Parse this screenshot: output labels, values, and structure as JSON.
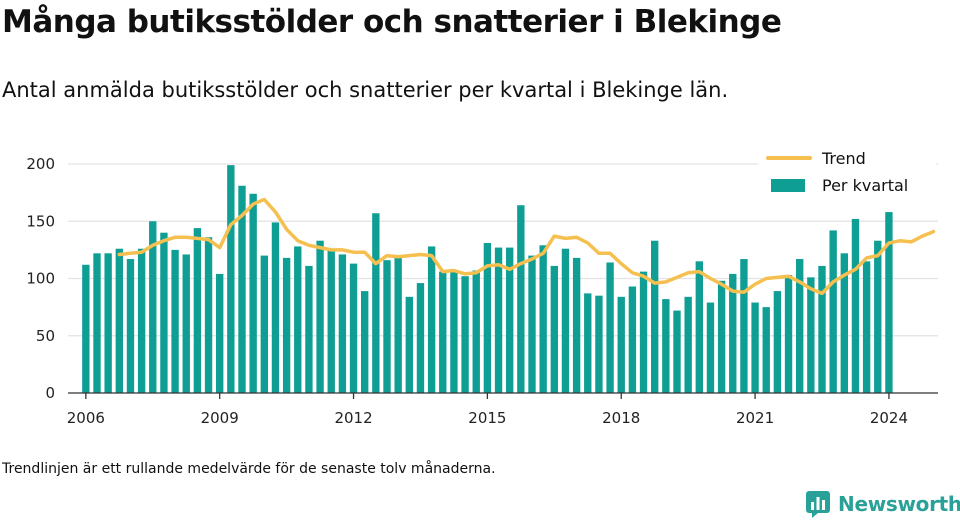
{
  "title": "Många butiksstölder och snatterier i Blekinge",
  "subtitle": "Antal anmälda butiksstölder och snatterier per kvartal i Blekinge län.",
  "footnote": "Trendlinjen är ett rullande medelvärde för de senaste tolv månaderna.",
  "brand": "Newsworthy",
  "colors": {
    "bar": "#0f9e94",
    "trend": "#f5c04f",
    "grid": "#e3e3e3",
    "axis": "#333333",
    "brand": "#2aa198"
  },
  "chart_data": {
    "type": "bar",
    "title": "",
    "xlabel": "",
    "ylabel": "",
    "ylim": [
      0,
      200
    ],
    "yticks": [
      0,
      50,
      100,
      150,
      200
    ],
    "xticks": [
      "2006",
      "2009",
      "2012",
      "2015",
      "2018",
      "2021",
      "2024"
    ],
    "xlim": [
      2005.6,
      2025.1
    ],
    "grid": true,
    "legend_position": "top-right",
    "series": [
      {
        "name": "Per kvartal",
        "type": "bar",
        "start_year": 2006,
        "start_quarter": 1,
        "values": [
          112,
          122,
          122,
          126,
          117,
          126,
          150,
          140,
          125,
          121,
          144,
          136,
          104,
          199,
          181,
          174,
          120,
          149,
          118,
          128,
          111,
          133,
          124,
          121,
          113,
          89,
          157,
          116,
          118,
          84,
          96,
          128,
          106,
          106,
          102,
          107,
          131,
          127,
          127,
          164,
          120,
          129,
          111,
          126,
          118,
          87,
          85,
          114,
          84,
          93,
          106,
          133,
          82,
          72,
          84,
          115,
          79,
          98,
          104,
          117,
          79,
          75,
          89,
          103,
          117,
          101,
          111,
          142,
          122,
          152,
          115,
          133,
          158
        ]
      },
      {
        "name": "Trend",
        "type": "line",
        "points": [
          [
            2006.75,
            121
          ],
          [
            2007.0,
            122
          ],
          [
            2007.25,
            123
          ],
          [
            2007.5,
            129
          ],
          [
            2007.75,
            133
          ],
          [
            2008.0,
            136
          ],
          [
            2008.25,
            136
          ],
          [
            2008.5,
            135
          ],
          [
            2008.75,
            134
          ],
          [
            2009.0,
            127
          ],
          [
            2009.25,
            147
          ],
          [
            2009.5,
            155
          ],
          [
            2009.75,
            165
          ],
          [
            2010.0,
            169
          ],
          [
            2010.25,
            158
          ],
          [
            2010.5,
            143
          ],
          [
            2010.75,
            133
          ],
          [
            2011.0,
            129
          ],
          [
            2011.25,
            127
          ],
          [
            2011.5,
            125
          ],
          [
            2011.75,
            125
          ],
          [
            2012.0,
            123
          ],
          [
            2012.25,
            123
          ],
          [
            2012.5,
            113
          ],
          [
            2012.75,
            120
          ],
          [
            2013.0,
            119
          ],
          [
            2013.25,
            120
          ],
          [
            2013.5,
            121
          ],
          [
            2013.75,
            120
          ],
          [
            2014.0,
            106
          ],
          [
            2014.25,
            107
          ],
          [
            2014.5,
            104
          ],
          [
            2014.75,
            105
          ],
          [
            2015.0,
            111
          ],
          [
            2015.25,
            112
          ],
          [
            2015.5,
            108
          ],
          [
            2015.75,
            113
          ],
          [
            2016.0,
            117
          ],
          [
            2016.25,
            122
          ],
          [
            2016.5,
            137
          ],
          [
            2016.75,
            135
          ],
          [
            2017.0,
            136
          ],
          [
            2017.25,
            131
          ],
          [
            2017.5,
            122
          ],
          [
            2017.75,
            122
          ],
          [
            2018.0,
            113
          ],
          [
            2018.25,
            105
          ],
          [
            2018.5,
            102
          ],
          [
            2018.75,
            96
          ],
          [
            2019.0,
            97
          ],
          [
            2019.25,
            101
          ],
          [
            2019.5,
            105
          ],
          [
            2019.75,
            106
          ],
          [
            2020.0,
            100
          ],
          [
            2020.25,
            95
          ],
          [
            2020.5,
            89
          ],
          [
            2020.75,
            88
          ],
          [
            2021.0,
            95
          ],
          [
            2021.25,
            100
          ],
          [
            2021.5,
            101
          ],
          [
            2021.75,
            102
          ],
          [
            2022.0,
            97
          ],
          [
            2022.25,
            91
          ],
          [
            2022.5,
            87
          ],
          [
            2022.75,
            97
          ],
          [
            2023.0,
            103
          ],
          [
            2023.25,
            108
          ],
          [
            2023.5,
            118
          ],
          [
            2023.75,
            120
          ],
          [
            2024.0,
            131
          ],
          [
            2024.25,
            133
          ],
          [
            2024.5,
            132
          ],
          [
            2024.75,
            137
          ],
          [
            2025.0,
            141
          ]
        ]
      }
    ]
  }
}
